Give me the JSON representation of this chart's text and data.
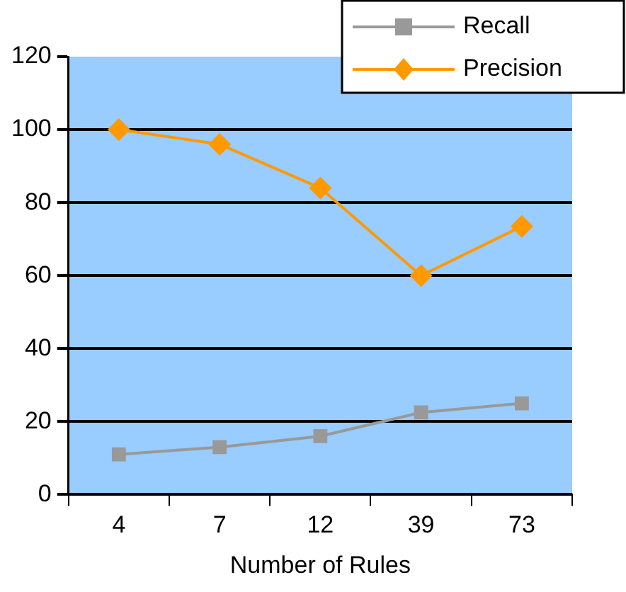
{
  "chart_data": {
    "type": "line",
    "xlabel": "Number of Rules",
    "categories": [
      "4",
      "7",
      "12",
      "39",
      "73"
    ],
    "series": [
      {
        "name": "Recall",
        "color": "#999999",
        "values": [
          11,
          13,
          16,
          22.5,
          25
        ],
        "marker": "square"
      },
      {
        "name": "Precision",
        "color": "#ff9900",
        "values": [
          100,
          96,
          84,
          60,
          73.5
        ],
        "marker": "diamond"
      }
    ],
    "ylim": [
      0,
      120
    ],
    "yticks": [
      0,
      20,
      40,
      60,
      80,
      100,
      120
    ],
    "grid": "y",
    "legend": "top right",
    "line_style": "solid"
  }
}
